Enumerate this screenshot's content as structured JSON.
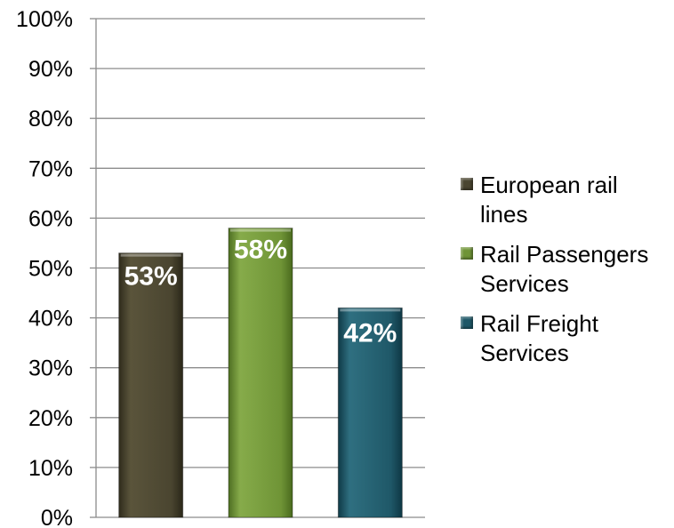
{
  "chart_data": {
    "type": "bar",
    "categories": [
      "European rail lines",
      "Rail Passengers Services",
      "Rail Freight Services"
    ],
    "values": [
      53,
      58,
      42
    ],
    "data_labels": [
      "53%",
      "58%",
      "42%"
    ],
    "ylim": [
      0,
      100
    ],
    "y_ticks": [
      0,
      10,
      20,
      30,
      40,
      50,
      60,
      70,
      80,
      90,
      100
    ],
    "y_tick_labels": [
      "0%",
      "10%",
      "20%",
      "30%",
      "40%",
      "50%",
      "60%",
      "70%",
      "80%",
      "90%",
      "100%"
    ],
    "grid": true,
    "legend_position": "right",
    "colors": [
      "#4a4530",
      "#6f9436",
      "#1f5868"
    ],
    "title": "",
    "xlabel": "",
    "ylabel": ""
  },
  "legend": {
    "items": [
      {
        "label": "European rail lines",
        "color": "#4a4530"
      },
      {
        "label": "Rail Passengers Services",
        "color": "#6f9436"
      },
      {
        "label": "Rail Freight Services",
        "color": "#1f5868"
      }
    ]
  }
}
